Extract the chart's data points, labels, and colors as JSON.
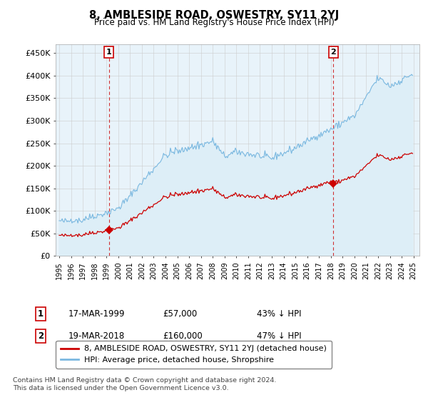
{
  "title": "8, AMBLESIDE ROAD, OSWESTRY, SY11 2YJ",
  "subtitle": "Price paid vs. HM Land Registry's House Price Index (HPI)",
  "legend_line1": "8, AMBLESIDE ROAD, OSWESTRY, SY11 2YJ (detached house)",
  "legend_line2": "HPI: Average price, detached house, Shropshire",
  "footnote": "Contains HM Land Registry data © Crown copyright and database right 2024.\nThis data is licensed under the Open Government Licence v3.0.",
  "annotation1_label": "1",
  "annotation1_date": "17-MAR-1999",
  "annotation1_price": "£57,000",
  "annotation1_hpi": "43% ↓ HPI",
  "annotation2_label": "2",
  "annotation2_date": "19-MAR-2018",
  "annotation2_price": "£160,000",
  "annotation2_hpi": "47% ↓ HPI",
  "sale1_year": 1999.21,
  "sale1_price": 57000,
  "sale2_year": 2018.21,
  "sale2_price": 160000,
  "hpi_color": "#7ab8e0",
  "hpi_fill_color": "#ddeef7",
  "price_color": "#cc0000",
  "ylim": [
    0,
    470000
  ],
  "yticks": [
    0,
    50000,
    100000,
    150000,
    200000,
    250000,
    300000,
    350000,
    400000,
    450000
  ],
  "background_color": "#ffffff",
  "grid_color": "#cccccc",
  "plot_bg_color": "#e8f3fa"
}
